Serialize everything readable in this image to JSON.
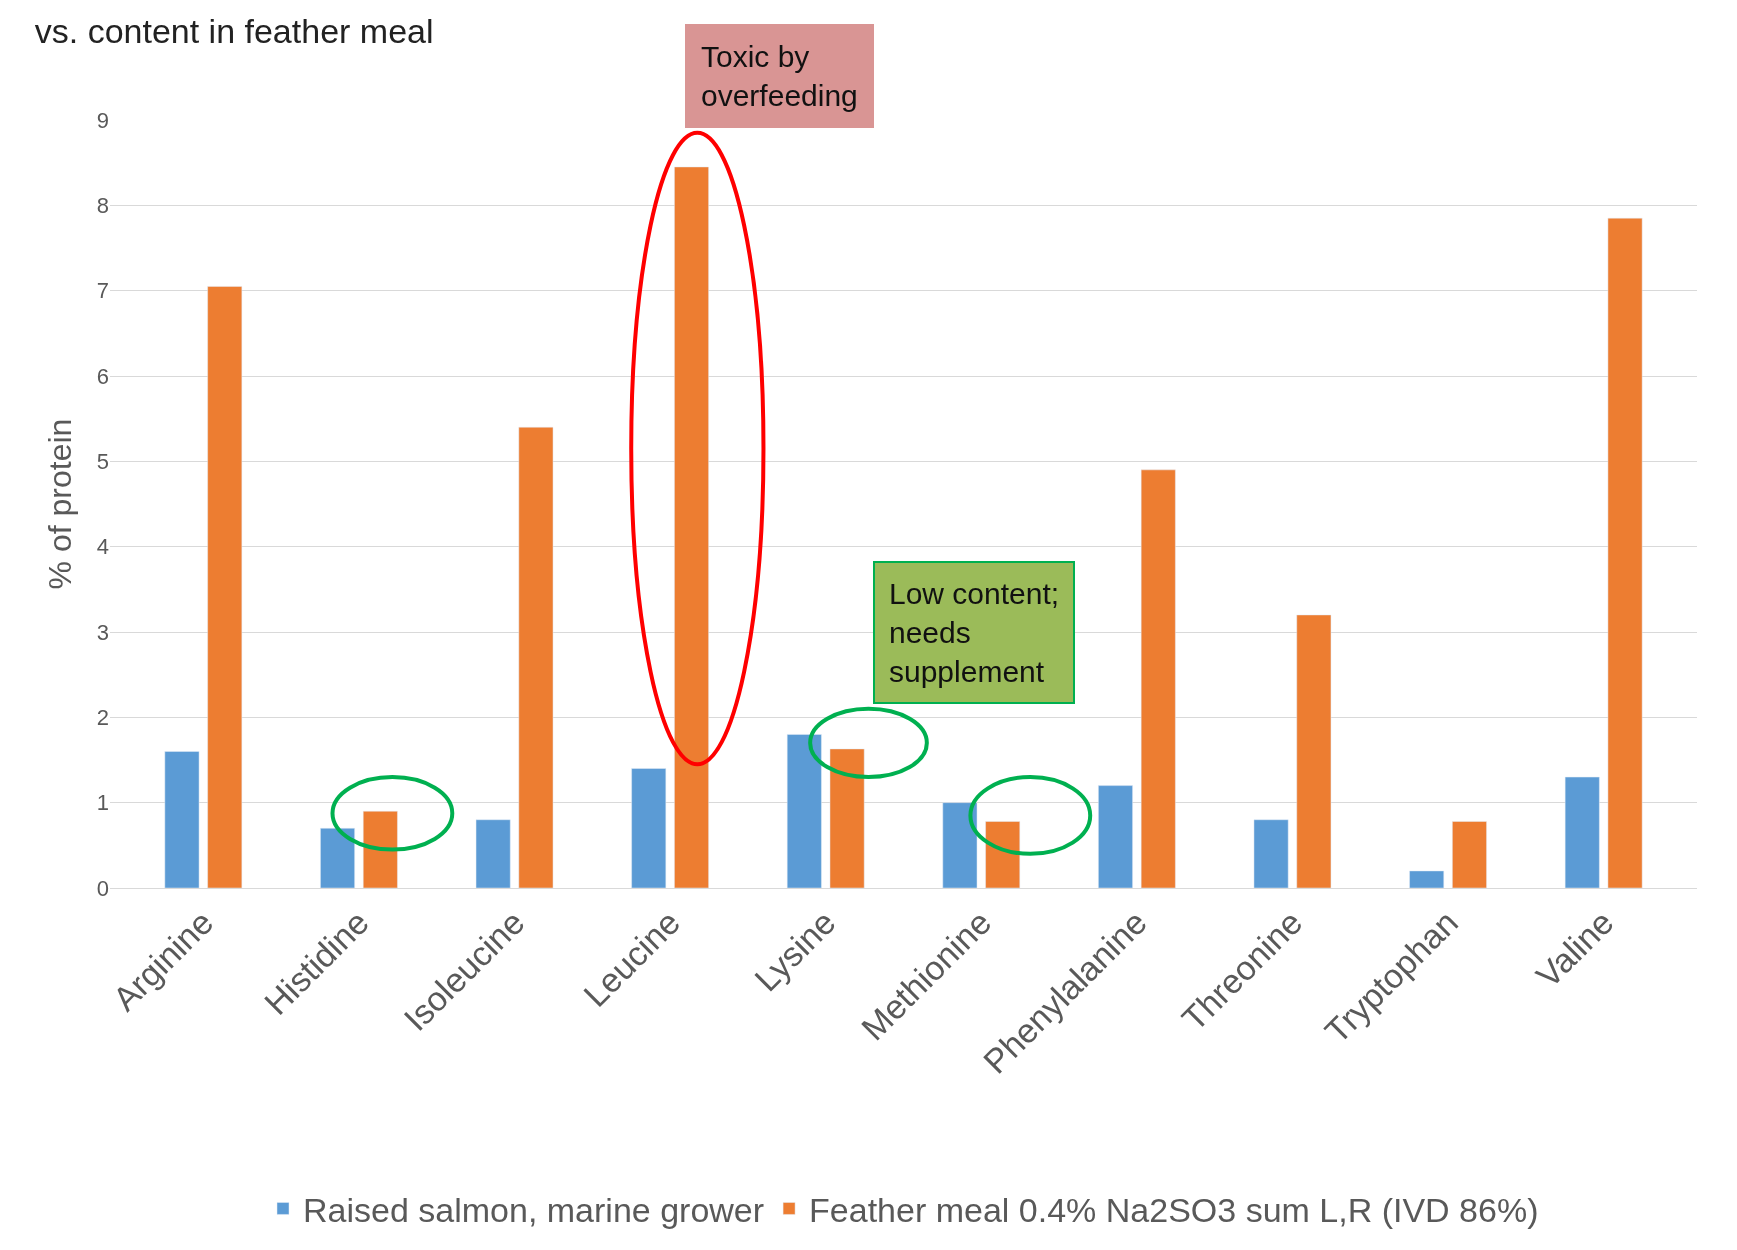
{
  "chart_data": {
    "type": "bar",
    "title": "vs. content in feather meal",
    "ylabel": "% of protein",
    "categories": [
      "Arginine",
      "Histidine",
      "Isoleucine",
      "Leucine",
      "Lysine",
      "Methionine",
      "Phenylalanine",
      "Threonine",
      "Tryptophan",
      "Valine"
    ],
    "series": [
      {
        "name": "Raised salmon, marine grower",
        "color": "#5b9bd5",
        "values": [
          1.6,
          0.7,
          0.8,
          1.4,
          1.8,
          1.0,
          1.2,
          0.8,
          0.2,
          1.3
        ]
      },
      {
        "name": "Feather meal 0.4% Na2SO3 sum L,R (IVD 86%)",
        "color": "#ed7d31",
        "values": [
          7.05,
          0.9,
          5.4,
          8.45,
          1.63,
          0.78,
          4.9,
          3.2,
          0.78,
          7.85
        ]
      }
    ],
    "annotations": [
      "Toxic by overfeeding",
      "Low content; needs supplement"
    ],
    "ylim": [
      0,
      9
    ],
    "yticks": [
      0,
      1,
      2,
      3,
      4,
      5,
      6,
      7,
      8,
      9
    ],
    "grid": "y",
    "legend": "bottom"
  }
}
